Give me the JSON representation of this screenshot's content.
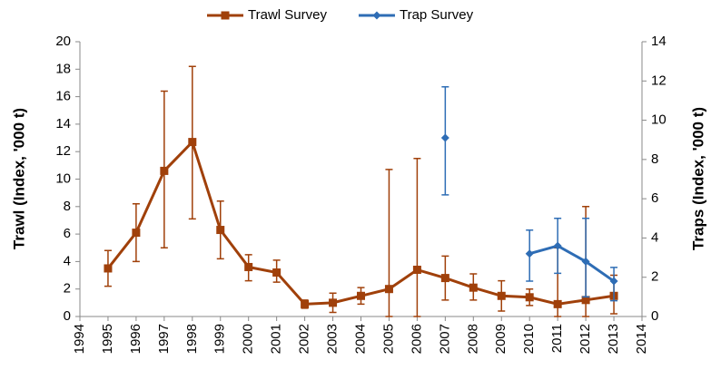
{
  "chart_data": {
    "type": "line",
    "x": [
      1995,
      1996,
      1997,
      1998,
      1999,
      2000,
      2001,
      2002,
      2003,
      2004,
      2005,
      2006,
      2007,
      2008,
      2009,
      2010,
      2011,
      2012,
      2013
    ],
    "series": [
      {
        "name": "Trawl Survey",
        "color": "#a0400a",
        "marker": "square",
        "values": [
          3.5,
          6.1,
          10.6,
          12.7,
          6.3,
          3.6,
          3.2,
          0.9,
          1.0,
          1.5,
          2.0,
          3.4,
          2.8,
          2.1,
          1.5,
          1.4,
          0.9,
          1.2,
          1.5
        ],
        "lower": [
          2.2,
          4.0,
          5.0,
          7.1,
          4.2,
          2.6,
          2.5,
          0.6,
          0.3,
          0.9,
          0,
          0,
          1.2,
          1.2,
          0.4,
          0.8,
          0,
          0,
          0.2
        ],
        "upper": [
          4.8,
          8.2,
          16.4,
          18.2,
          8.4,
          4.5,
          4.1,
          1.2,
          1.7,
          2.1,
          10.7,
          11.5,
          4.4,
          3.1,
          2.6,
          2.0,
          5.0,
          8.0,
          3.0
        ]
      },
      {
        "name": "Trap Survey",
        "color": "#2e6db5",
        "marker": "diamond",
        "axis": "y2",
        "values": [
          null,
          null,
          null,
          null,
          null,
          null,
          null,
          null,
          null,
          null,
          null,
          null,
          9.1,
          null,
          null,
          3.2,
          3.6,
          2.8,
          1.8
        ],
        "lower": [
          null,
          null,
          null,
          null,
          null,
          null,
          null,
          null,
          null,
          null,
          null,
          null,
          6.2,
          null,
          null,
          1.8,
          2.2,
          1.0,
          0.8
        ],
        "upper": [
          null,
          null,
          null,
          null,
          null,
          null,
          null,
          null,
          null,
          null,
          null,
          null,
          11.7,
          null,
          null,
          4.4,
          5.0,
          5.0,
          2.5
        ]
      }
    ],
    "xlim": [
      1994,
      2014
    ],
    "xticks": [
      1994,
      1995,
      1996,
      1997,
      1998,
      1999,
      2000,
      2001,
      2002,
      2003,
      2004,
      2005,
      2006,
      2007,
      2008,
      2009,
      2010,
      2011,
      2012,
      2013,
      2014
    ],
    "ylim": [
      0,
      20
    ],
    "yticks": [
      0,
      2,
      4,
      6,
      8,
      10,
      12,
      14,
      16,
      18,
      20
    ],
    "y2lim": [
      0,
      14
    ],
    "y2ticks": [
      0,
      2,
      4,
      6,
      8,
      10,
      12,
      14
    ],
    "ylabel": "Trawl (Index, '000 t)",
    "y2label": "Traps (Index, '000 t)",
    "legend": "top"
  }
}
